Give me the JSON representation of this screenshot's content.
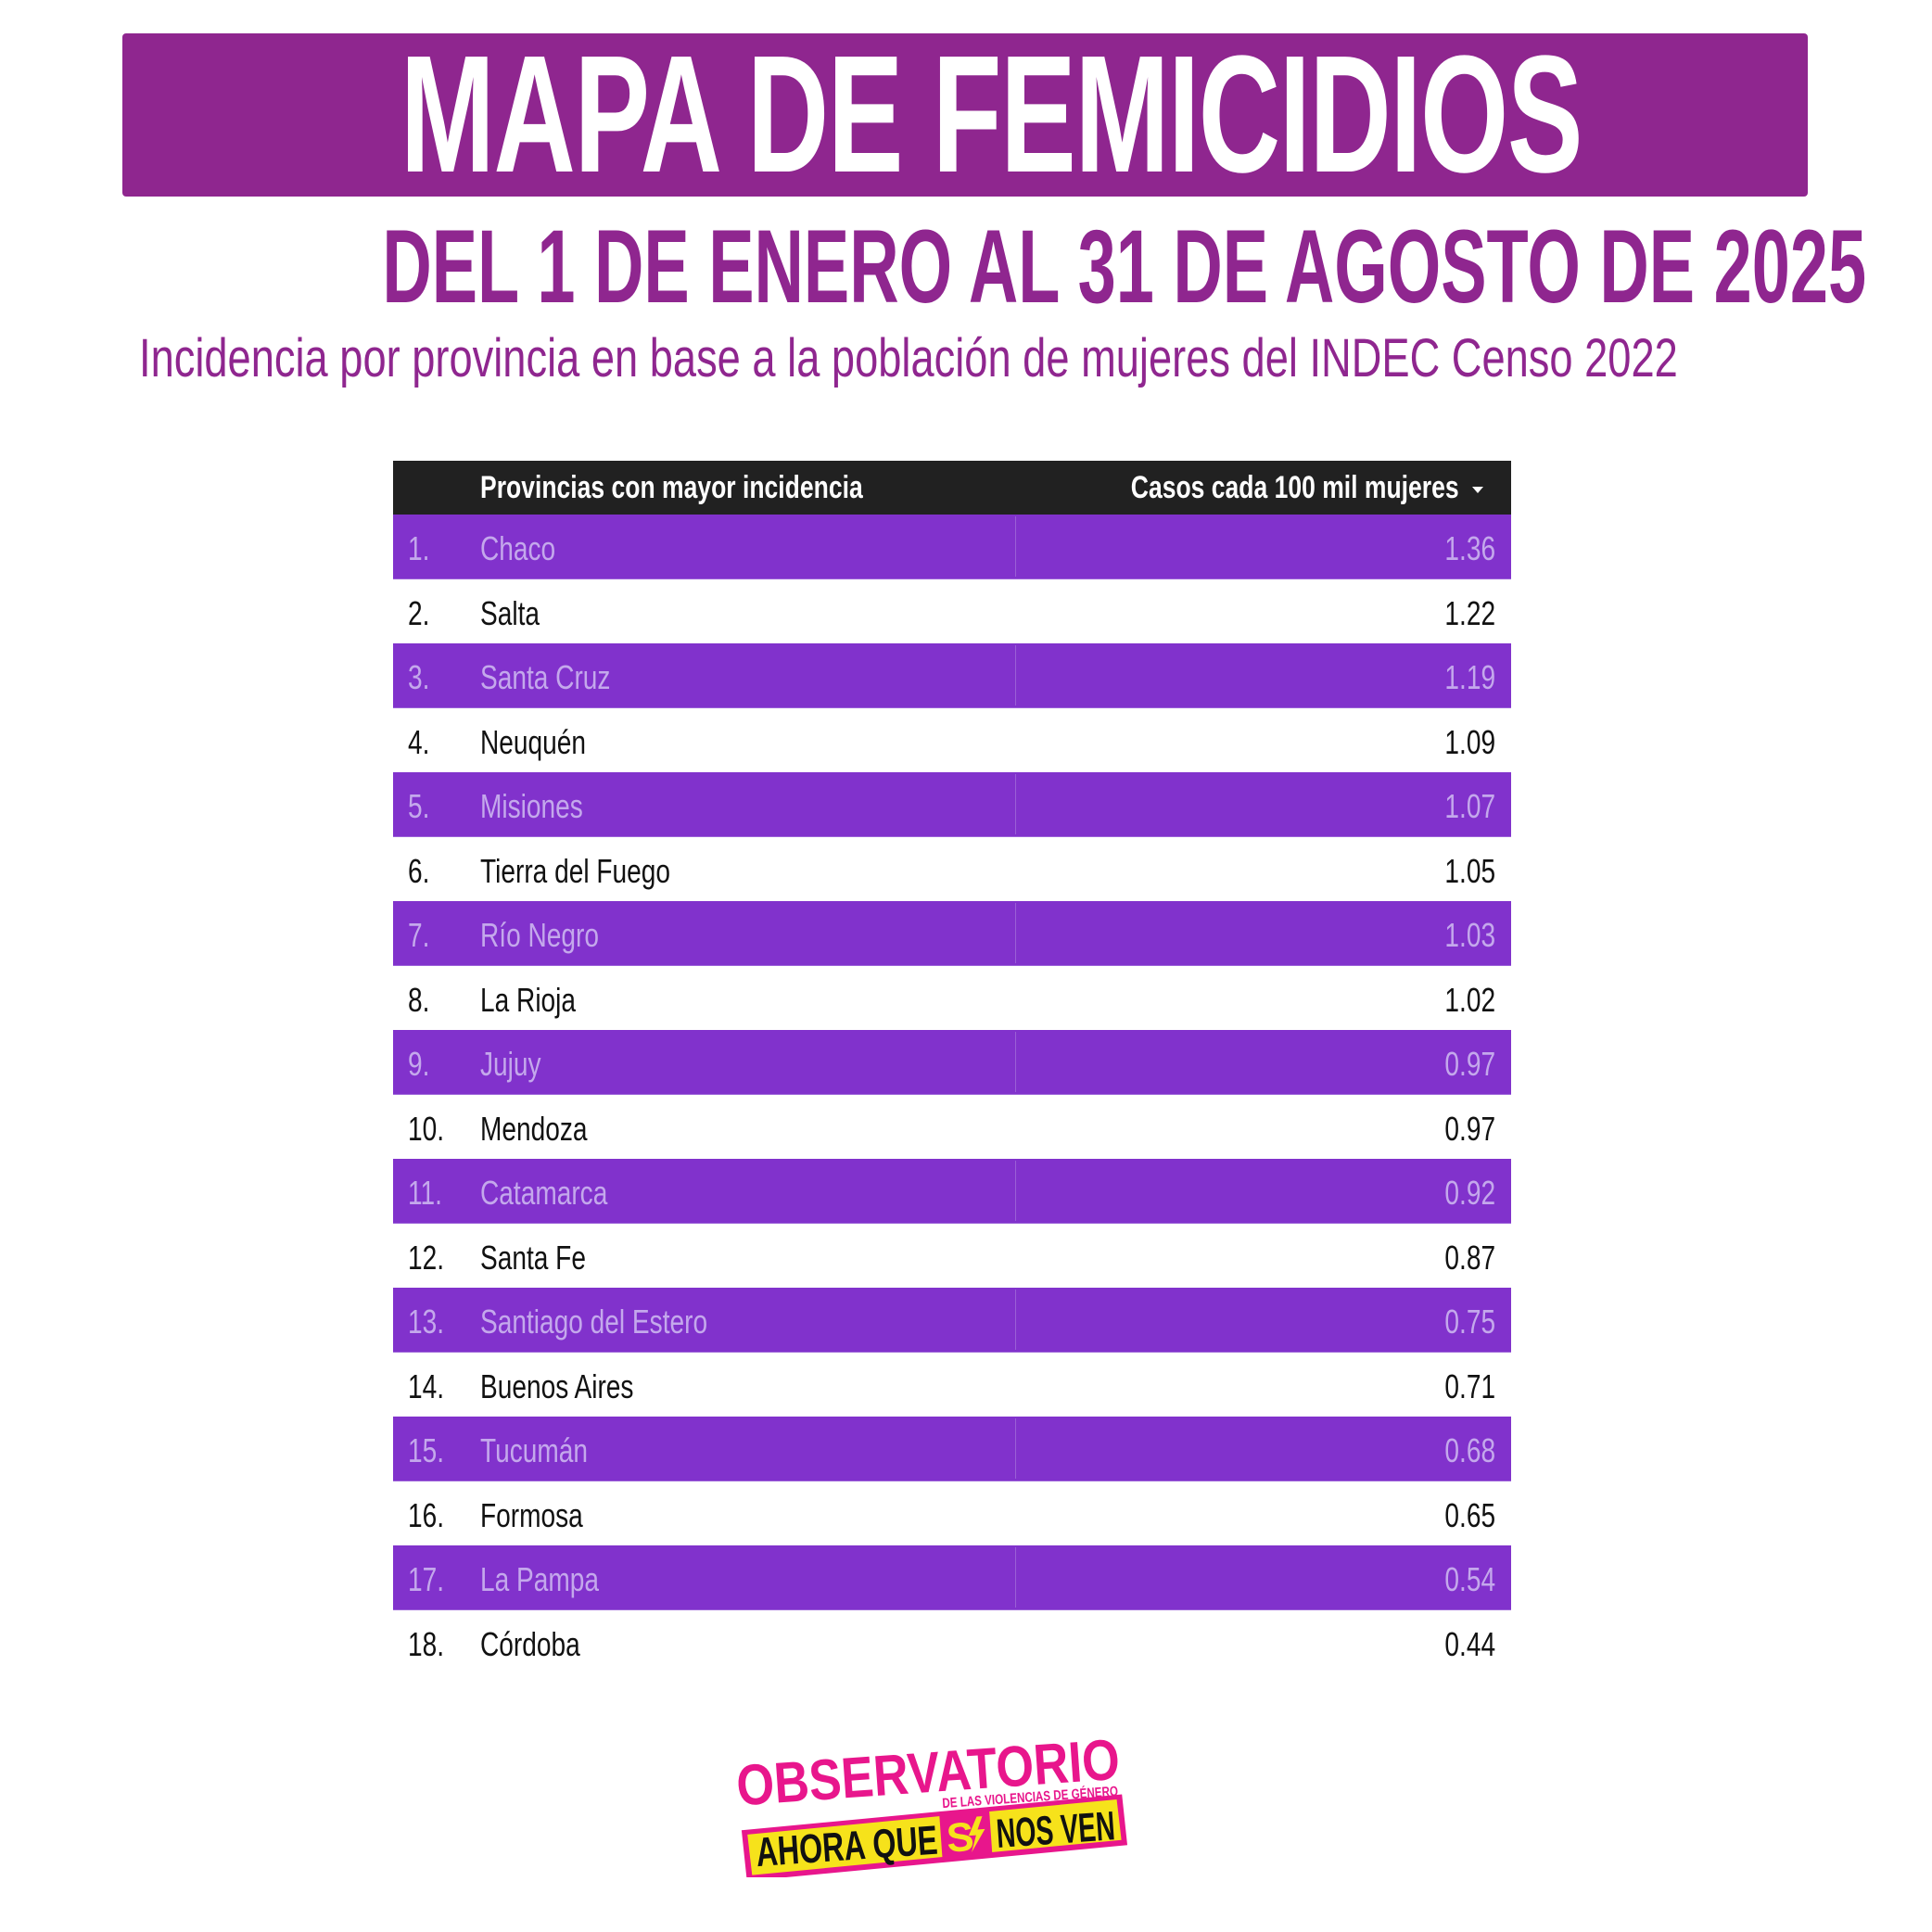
{
  "header": {
    "title": "MAPA DE FEMICIDIOS",
    "subtitle": "DEL 1 DE ENERO AL 31 DE AGOSTO DE 2025",
    "description": "Incidencia por provincia en base a la población de mujeres del INDEC Censo 2022"
  },
  "colors": {
    "title_bar": "#8f268f",
    "row_highlight": "#8132cc",
    "header_bg": "#212121",
    "logo_pink": "#e8168c",
    "logo_yellow": "#f6e21b"
  },
  "chart_data": {
    "type": "table",
    "columns": [
      "Provincias con mayor incidencia",
      "Casos cada 100 mil mujeres"
    ],
    "sort_icon": "caret-down-icon",
    "rows": [
      {
        "rank": "1.",
        "province": "Chaco",
        "value": "1.36"
      },
      {
        "rank": "2.",
        "province": "Salta",
        "value": "1.22"
      },
      {
        "rank": "3.",
        "province": "Santa Cruz",
        "value": "1.19"
      },
      {
        "rank": "4.",
        "province": "Neuquén",
        "value": "1.09"
      },
      {
        "rank": "5.",
        "province": "Misiones",
        "value": "1.07"
      },
      {
        "rank": "6.",
        "province": "Tierra del Fuego",
        "value": "1.05"
      },
      {
        "rank": "7.",
        "province": "Río Negro",
        "value": "1.03"
      },
      {
        "rank": "8.",
        "province": "La Rioja",
        "value": "1.02"
      },
      {
        "rank": "9.",
        "province": "Jujuy",
        "value": "0.97"
      },
      {
        "rank": "10.",
        "province": "Mendoza",
        "value": "0.97"
      },
      {
        "rank": "11.",
        "province": "Catamarca",
        "value": "0.92"
      },
      {
        "rank": "12.",
        "province": "Santa Fe",
        "value": "0.87"
      },
      {
        "rank": "13.",
        "province": "Santiago del Estero",
        "value": "0.75"
      },
      {
        "rank": "14.",
        "province": "Buenos Aires",
        "value": "0.71"
      },
      {
        "rank": "15.",
        "province": "Tucumán",
        "value": "0.68"
      },
      {
        "rank": "16.",
        "province": "Formosa",
        "value": "0.65"
      },
      {
        "rank": "17.",
        "province": "La Pampa",
        "value": "0.54"
      },
      {
        "rank": "18.",
        "province": "Córdoba",
        "value": "0.44"
      }
    ]
  },
  "logo": {
    "line1": "OBSERVATORIO",
    "line2": "DE LAS VIOLENCIAS DE GÉNERO",
    "line3_a": "AHORA QUE",
    "line3_b": "S",
    "line3_c": "NOS VEN"
  }
}
